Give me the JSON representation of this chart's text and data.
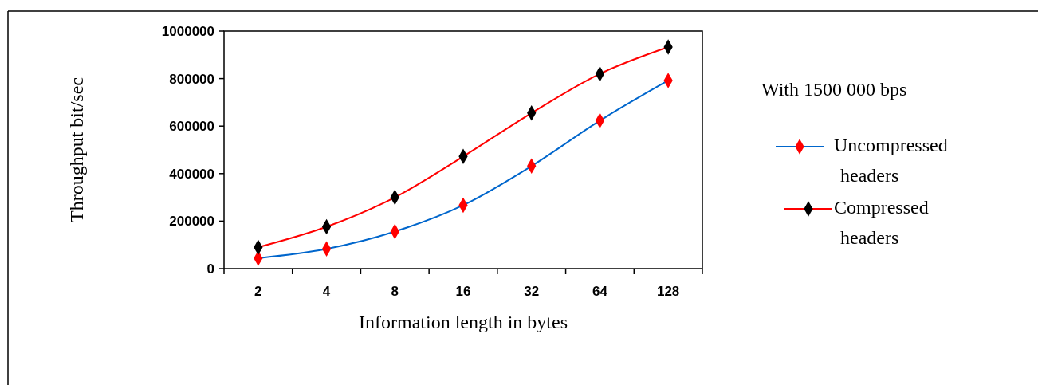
{
  "chart_data": {
    "type": "line",
    "xlabel": "Information length in bytes",
    "ylabel": "Throughput bit/sec",
    "legend_title": "With 1500 000 bps",
    "categories": [
      "2",
      "4",
      "8",
      "16",
      "32",
      "64",
      "128"
    ],
    "series": [
      {
        "name": "Uncompressed headers",
        "color": "#0066cc",
        "colors": [
          "#ff0000",
          "#ff0000",
          "#ff0000",
          "#ff0000",
          "#ff0000",
          "#ff0000",
          "#ff0000"
        ],
        "values": [
          44000,
          83000,
          156000,
          267000,
          432000,
          623000,
          792000
        ]
      },
      {
        "name": "Compressed headers",
        "color": "#ff0000",
        "colors": [
          "#000000",
          "#000000",
          "#000000",
          "#000000",
          "#000000",
          "#000000",
          "#000000"
        ],
        "values": [
          90000,
          176000,
          300000,
          472000,
          655000,
          820000,
          933000
        ]
      }
    ],
    "ylim": [
      0,
      1000000
    ],
    "yticks": [
      0,
      200000,
      400000,
      600000,
      800000,
      1000000
    ],
    "grid": false,
    "legend": "right",
    "marker": "diamond",
    "line_style": "solid"
  }
}
